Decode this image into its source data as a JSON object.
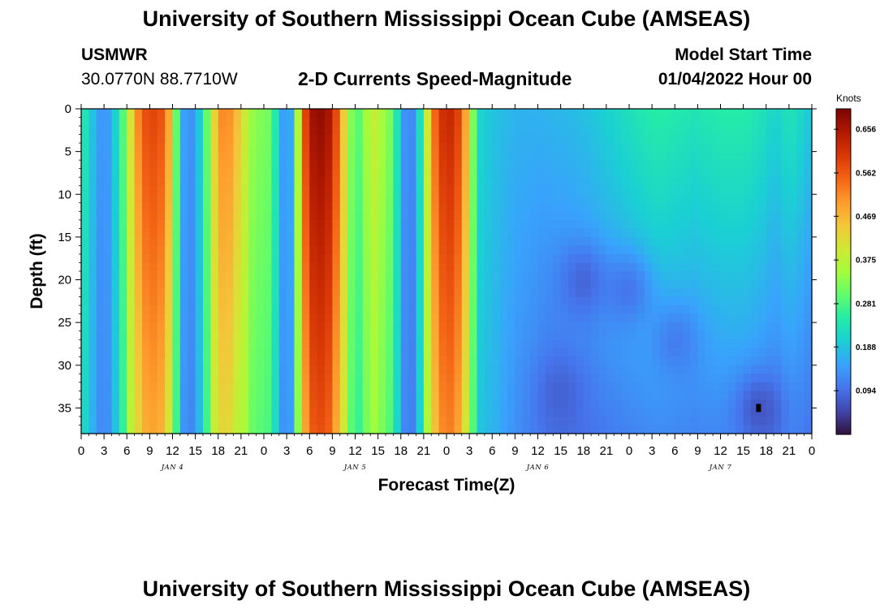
{
  "header": {
    "title": "University of Southern Mississippi Ocean Cube (AMSEAS)",
    "station": "USMWR",
    "location": "30.0770N  88.7710W",
    "model_start_label": "Model Start Time",
    "model_start_value": "01/04/2022 Hour 00",
    "subtitle": "2-D Currents Speed-Magnitude"
  },
  "footer": {
    "title": "University of Southern Mississippi Ocean Cube (AMSEAS)"
  },
  "chart_data": {
    "type": "heatmap",
    "title": "2-D Currents Speed-Magnitude",
    "xlabel": "Forecast Time(Z)",
    "ylabel": "Depth (ft)",
    "x_tick_labels": [
      "0",
      "3",
      "6",
      "9",
      "12",
      "15",
      "18",
      "21",
      "0",
      "3",
      "6",
      "9",
      "12",
      "15",
      "18",
      "21",
      "0",
      "3",
      "6",
      "9",
      "12",
      "15",
      "18",
      "21",
      "0",
      "3",
      "6",
      "9",
      "12",
      "15",
      "18",
      "21",
      "0"
    ],
    "x_range_hours": [
      0,
      96
    ],
    "day_labels": [
      {
        "label": "JAN 4",
        "hour": 12
      },
      {
        "label": "JAN 5",
        "hour": 36
      },
      {
        "label": "JAN 6",
        "hour": 60
      },
      {
        "label": "JAN 7",
        "hour": 84
      }
    ],
    "y_ticks": [
      0,
      5,
      10,
      15,
      20,
      25,
      30,
      35
    ],
    "y_range": [
      0,
      38
    ],
    "y_reversed": true,
    "colorbar": {
      "unit": "Knots",
      "ticks": [
        "0.656",
        "0.562",
        "0.469",
        "0.375",
        "0.281",
        "0.188",
        "0.094"
      ],
      "tick_values": [
        0.656,
        0.562,
        0.469,
        0.375,
        0.281,
        0.188,
        0.094
      ],
      "range": [
        0.0,
        0.7
      ],
      "colors": [
        "#30123b",
        "#4146ac",
        "#4675ed",
        "#39a2fc",
        "#1bcfd4",
        "#24eca6",
        "#61fc6c",
        "#a4fc3b",
        "#d1e834",
        "#f3c63a",
        "#fe9b2d",
        "#f36315",
        "#d93806",
        "#b11901",
        "#7a0402"
      ]
    },
    "surface_speed_profile": [
      {
        "hour": 0,
        "value": 0.26
      },
      {
        "hour": 1,
        "value": 0.21
      },
      {
        "hour": 2,
        "value": 0.16
      },
      {
        "hour": 3,
        "value": 0.12
      },
      {
        "hour": 4,
        "value": 0.17
      },
      {
        "hour": 5,
        "value": 0.24
      },
      {
        "hour": 6,
        "value": 0.34
      },
      {
        "hour": 7,
        "value": 0.48
      },
      {
        "hour": 8,
        "value": 0.56
      },
      {
        "hour": 9,
        "value": 0.59
      },
      {
        "hour": 10,
        "value": 0.58
      },
      {
        "hour": 11,
        "value": 0.56
      },
      {
        "hour": 12,
        "value": 0.42
      },
      {
        "hour": 13,
        "value": 0.18
      },
      {
        "hour": 14,
        "value": 0.12
      },
      {
        "hour": 15,
        "value": 0.15
      },
      {
        "hour": 16,
        "value": 0.24
      },
      {
        "hour": 17,
        "value": 0.36
      },
      {
        "hour": 18,
        "value": 0.5
      },
      {
        "hour": 19,
        "value": 0.53
      },
      {
        "hour": 20,
        "value": 0.49
      },
      {
        "hour": 21,
        "value": 0.43
      },
      {
        "hour": 22,
        "value": 0.36
      },
      {
        "hour": 23,
        "value": 0.32
      },
      {
        "hour": 24,
        "value": 0.33
      },
      {
        "hour": 25,
        "value": 0.3
      },
      {
        "hour": 26,
        "value": 0.19
      },
      {
        "hour": 27,
        "value": 0.11
      },
      {
        "hour": 28,
        "value": 0.21
      },
      {
        "hour": 29,
        "value": 0.52
      },
      {
        "hour": 30,
        "value": 0.66
      },
      {
        "hour": 31,
        "value": 0.68
      },
      {
        "hour": 32,
        "value": 0.68
      },
      {
        "hour": 33,
        "value": 0.64
      },
      {
        "hour": 34,
        "value": 0.52
      },
      {
        "hour": 35,
        "value": 0.36
      },
      {
        "hour": 36,
        "value": 0.29
      },
      {
        "hour": 37,
        "value": 0.3
      },
      {
        "hour": 38,
        "value": 0.4
      },
      {
        "hour": 39,
        "value": 0.37
      },
      {
        "hour": 40,
        "value": 0.34
      },
      {
        "hour": 41,
        "value": 0.3
      },
      {
        "hour": 42,
        "value": 0.17
      },
      {
        "hour": 43,
        "value": 0.1
      },
      {
        "hour": 44,
        "value": 0.15
      },
      {
        "hour": 45,
        "value": 0.3
      },
      {
        "hour": 46,
        "value": 0.5
      },
      {
        "hour": 47,
        "value": 0.6
      },
      {
        "hour": 48,
        "value": 0.63
      },
      {
        "hour": 49,
        "value": 0.62
      },
      {
        "hour": 50,
        "value": 0.56
      },
      {
        "hour": 51,
        "value": 0.42
      },
      {
        "hour": 52,
        "value": 0.22
      },
      {
        "hour": 53,
        "value": 0.2
      },
      {
        "hour": 54,
        "value": 0.19
      },
      {
        "hour": 55,
        "value": 0.18
      },
      {
        "hour": 56,
        "value": 0.18
      },
      {
        "hour": 57,
        "value": 0.17
      },
      {
        "hour": 58,
        "value": 0.17
      },
      {
        "hour": 59,
        "value": 0.17
      },
      {
        "hour": 60,
        "value": 0.17
      },
      {
        "hour": 61,
        "value": 0.17
      },
      {
        "hour": 62,
        "value": 0.18
      },
      {
        "hour": 63,
        "value": 0.18
      },
      {
        "hour": 64,
        "value": 0.18
      },
      {
        "hour": 65,
        "value": 0.19
      },
      {
        "hour": 66,
        "value": 0.19
      },
      {
        "hour": 67,
        "value": 0.2
      },
      {
        "hour": 68,
        "value": 0.21
      },
      {
        "hour": 69,
        "value": 0.22
      },
      {
        "hour": 70,
        "value": 0.23
      },
      {
        "hour": 71,
        "value": 0.24
      },
      {
        "hour": 72,
        "value": 0.25
      },
      {
        "hour": 73,
        "value": 0.26
      },
      {
        "hour": 74,
        "value": 0.27
      },
      {
        "hour": 75,
        "value": 0.28
      },
      {
        "hour": 76,
        "value": 0.28
      },
      {
        "hour": 77,
        "value": 0.28
      },
      {
        "hour": 78,
        "value": 0.27
      },
      {
        "hour": 79,
        "value": 0.27
      },
      {
        "hour": 80,
        "value": 0.26
      },
      {
        "hour": 81,
        "value": 0.26
      },
      {
        "hour": 82,
        "value": 0.27
      },
      {
        "hour": 83,
        "value": 0.27
      },
      {
        "hour": 84,
        "value": 0.28
      },
      {
        "hour": 85,
        "value": 0.28
      },
      {
        "hour": 86,
        "value": 0.28
      },
      {
        "hour": 87,
        "value": 0.28
      },
      {
        "hour": 88,
        "value": 0.27
      },
      {
        "hour": 89,
        "value": 0.26
      },
      {
        "hour": 90,
        "value": 0.25
      },
      {
        "hour": 91,
        "value": 0.22
      },
      {
        "hour": 92,
        "value": 0.24
      },
      {
        "hour": 93,
        "value": 0.26
      },
      {
        "hour": 94,
        "value": 0.25
      },
      {
        "hour": 95,
        "value": 0.22
      },
      {
        "hour": 96,
        "value": 0.2
      }
    ],
    "low_speed_cores": [
      {
        "hour": 66,
        "depth": 20,
        "value": 0.04
      },
      {
        "hour": 72,
        "depth": 21,
        "value": 0.05
      },
      {
        "hour": 78,
        "depth": 27,
        "value": 0.07
      },
      {
        "hour": 63,
        "depth": 33,
        "value": 0.06
      },
      {
        "hour": 89,
        "depth": 35,
        "value": 0.02
      }
    ]
  }
}
